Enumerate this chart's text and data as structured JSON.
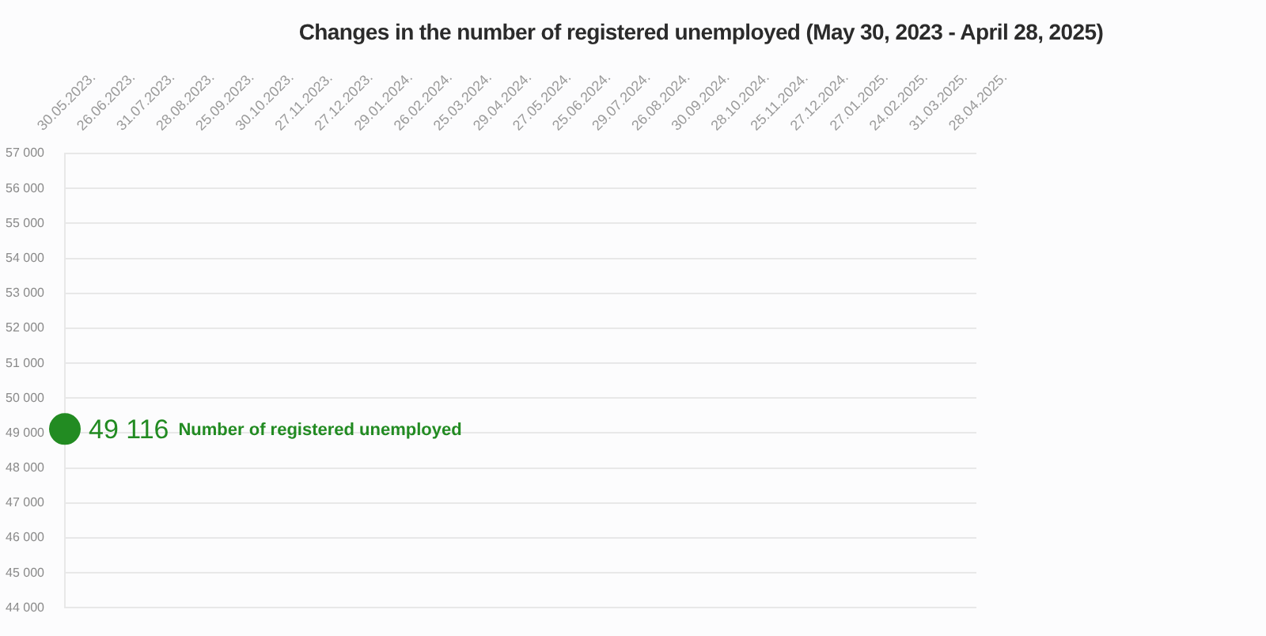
{
  "chart_data": {
    "type": "line",
    "title": "Changes in the number of registered unemployed (May 30, 2023 - April 28, 2025)",
    "categories": [
      "30.05.2023.",
      "26.06.2023.",
      "31.07.2023.",
      "28.08.2023.",
      "25.09.2023.",
      "30.10.2023.",
      "27.11.2023.",
      "27.12.2023.",
      "29.01.2024.",
      "26.02.2024.",
      "25.03.2024.",
      "29.04.2024.",
      "27.05.2024.",
      "25.06.2024.",
      "29.07.2024.",
      "26.08.2024.",
      "30.09.2024.",
      "28.10.2024.",
      "25.11.2024.",
      "27.12.2024.",
      "27.01.2025.",
      "24.02.2025.",
      "31.03.2025.",
      "28.04.2025."
    ],
    "series": [
      {
        "name": "Number of registered unemployed",
        "color": "#228b22",
        "values": [
          49116,
          null,
          null,
          null,
          null,
          null,
          null,
          null,
          null,
          null,
          null,
          null,
          null,
          null,
          null,
          null,
          null,
          null,
          null,
          null,
          null,
          null,
          null,
          null
        ],
        "value_labels": [
          "49 116",
          null,
          null,
          null,
          null,
          null,
          null,
          null,
          null,
          null,
          null,
          null,
          null,
          null,
          null,
          null,
          null,
          null,
          null,
          null,
          null,
          null,
          null,
          null
        ]
      }
    ],
    "ylim": [
      44000,
      57000
    ],
    "yticks": [
      {
        "value": 44000,
        "label": "44 000"
      },
      {
        "value": 45000,
        "label": "45 000"
      },
      {
        "value": 46000,
        "label": "46 000"
      },
      {
        "value": 47000,
        "label": "47 000"
      },
      {
        "value": 48000,
        "label": "48 000"
      },
      {
        "value": 49000,
        "label": "49 000"
      },
      {
        "value": 50000,
        "label": "50 000"
      },
      {
        "value": 51000,
        "label": "51 000"
      },
      {
        "value": 52000,
        "label": "52 000"
      },
      {
        "value": 53000,
        "label": "53 000"
      },
      {
        "value": 54000,
        "label": "54 000"
      },
      {
        "value": 55000,
        "label": "55 000"
      },
      {
        "value": 56000,
        "label": "56 000"
      },
      {
        "value": 57000,
        "label": "57 000"
      }
    ],
    "grid": "y",
    "legend": false,
    "marker": "circle"
  }
}
